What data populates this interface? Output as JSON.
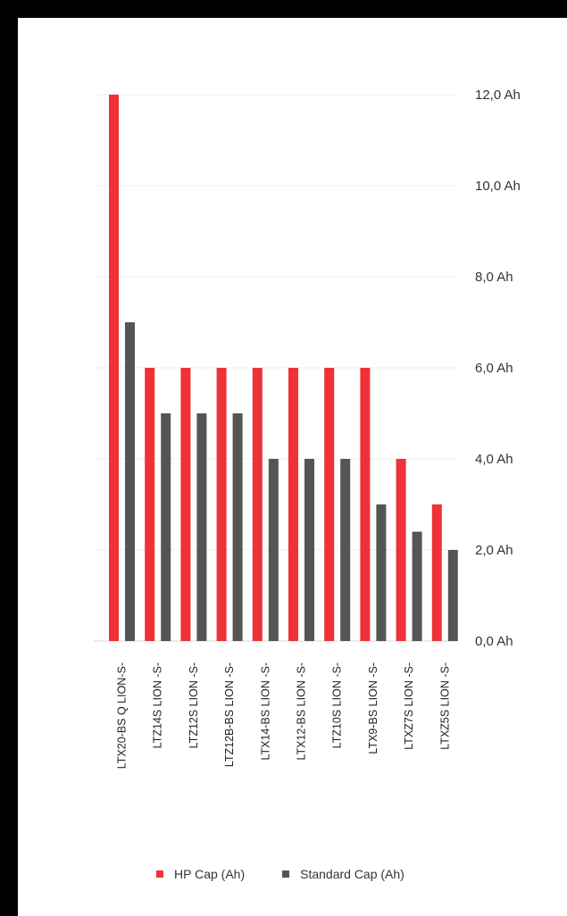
{
  "chart_data": {
    "type": "bar",
    "categories": [
      "LTX20-BS Q LION-S-",
      "LTZ14S LION -S-",
      "LTZ12S LION -S-",
      "LTZ12B-BS LION -S-",
      "LTX14-BS LION -S-",
      "LTX12-BS LION -S-",
      "LTZ10S LION -S-",
      "LTX9-BS LION -S-",
      "LTXZ7S LION -S-",
      "LTXZ5S LION -S-"
    ],
    "series": [
      {
        "name": "HP Cap (Ah)",
        "color": "#ee3237",
        "values": [
          12.0,
          6.0,
          6.0,
          6.0,
          6.0,
          6.0,
          6.0,
          6.0,
          4.0,
          3.0
        ]
      },
      {
        "name": "Standard Cap (Ah)",
        "color": "#555555",
        "values": [
          7.0,
          5.0,
          5.0,
          5.0,
          4.0,
          4.0,
          4.0,
          3.0,
          2.4,
          2.0
        ]
      }
    ],
    "yticks": [
      "0,0 Ah",
      "2,0 Ah",
      "4,0 Ah",
      "6,0 Ah",
      "8,0 Ah",
      "10,0 Ah",
      "12,0 Ah"
    ],
    "ylim": [
      0,
      12
    ],
    "yaxis_position": "right",
    "grid": true,
    "legend_position": "bottom"
  }
}
